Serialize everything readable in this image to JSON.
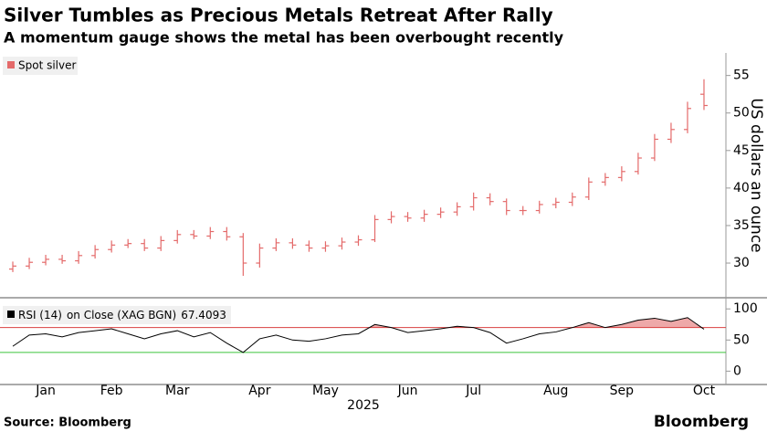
{
  "chart_data": [
    {
      "type": "ohlc",
      "title": "Silver Tumbles as Precious Metals Retreat After Rally",
      "subtitle": "A momentum gauge shows the metal has been overbought recently",
      "y_label": "US dollars an ounce",
      "series": [
        {
          "name": "Spot silver",
          "color": "#e46a6a",
          "open": [
            29.2,
            29.6,
            30.1,
            30.5,
            30.3,
            31.0,
            31.8,
            32.4,
            32.6,
            32.0,
            33.0,
            33.8,
            33.6,
            34.2,
            33.5,
            30.0,
            32.0,
            32.7,
            32.4,
            32.0,
            32.3,
            32.8,
            33.1,
            35.8,
            36.2,
            36.0,
            36.5,
            36.8,
            37.5,
            38.7,
            38.2,
            37.0,
            37.0,
            37.8,
            38.1,
            38.8,
            40.8,
            41.4,
            42.2,
            44.0,
            46.5,
            47.8,
            52.5
          ],
          "high": [
            30.2,
            30.7,
            31.1,
            31.1,
            31.6,
            32.4,
            33.0,
            33.2,
            33.2,
            33.6,
            34.4,
            34.4,
            34.8,
            34.8,
            34.0,
            32.6,
            33.3,
            33.3,
            33.0,
            32.9,
            33.4,
            33.7,
            36.4,
            36.9,
            36.8,
            37.1,
            37.4,
            38.1,
            39.4,
            39.3,
            38.6,
            37.6,
            38.3,
            38.7,
            39.4,
            41.4,
            42.0,
            42.9,
            44.7,
            47.2,
            48.7,
            51.5,
            54.5
          ],
          "low": [
            28.8,
            29.2,
            29.7,
            29.9,
            29.9,
            30.6,
            31.4,
            32.0,
            31.6,
            31.6,
            32.6,
            33.2,
            33.2,
            33.0,
            28.3,
            29.4,
            31.6,
            31.9,
            31.5,
            31.5,
            31.8,
            32.3,
            32.8,
            35.3,
            35.5,
            35.5,
            36.0,
            36.3,
            37.0,
            37.7,
            36.4,
            36.4,
            36.6,
            37.3,
            37.6,
            38.4,
            40.3,
            40.9,
            41.8,
            43.6,
            46.0,
            47.3,
            50.4
          ],
          "close": [
            29.6,
            30.1,
            30.5,
            30.3,
            31.0,
            31.8,
            32.4,
            32.6,
            32.0,
            33.0,
            33.8,
            33.6,
            34.2,
            33.5,
            30.0,
            32.0,
            32.7,
            32.4,
            32.0,
            32.3,
            32.8,
            33.1,
            35.8,
            36.2,
            36.0,
            36.5,
            36.8,
            37.5,
            38.7,
            38.2,
            37.0,
            37.0,
            37.8,
            38.1,
            38.8,
            40.8,
            41.4,
            42.2,
            44.0,
            46.5,
            47.8,
            50.6,
            51.0
          ]
        }
      ],
      "ylim": [
        25.5,
        58
      ],
      "yticks": [
        30,
        35,
        40,
        45,
        50,
        55
      ]
    },
    {
      "type": "line",
      "categories": [
        null,
        null,
        "Jan",
        null,
        null,
        null,
        "Feb",
        null,
        null,
        null,
        "Mar",
        null,
        null,
        null,
        null,
        "Apr",
        null,
        null,
        null,
        "May",
        null,
        null,
        null,
        null,
        "Jun",
        null,
        null,
        null,
        "Jul",
        null,
        null,
        null,
        null,
        "Aug",
        null,
        null,
        null,
        "Sep",
        null,
        null,
        null,
        null,
        "Oct"
      ],
      "x_label": "2025",
      "series": [
        {
          "name": "RSI (14)",
          "study": "on Close (XAG BGN)",
          "color": "#000000",
          "values": [
            40,
            58,
            60,
            55,
            62,
            65,
            68,
            60,
            52,
            60,
            65,
            55,
            62,
            45,
            30,
            52,
            58,
            50,
            48,
            52,
            58,
            60,
            75,
            70,
            62,
            65,
            68,
            72,
            70,
            62,
            45,
            52,
            60,
            63,
            70,
            78,
            70,
            75,
            82,
            85,
            80,
            86,
            67.4093
          ]
        }
      ],
      "overbought": 70,
      "oversold": 30,
      "overbought_color": "#d94040",
      "oversold_color": "#3cc43c",
      "ylim": [
        -20,
        115
      ],
      "yticks": [
        0,
        50,
        100
      ]
    }
  ],
  "footer": {
    "source": "Source: Bloomberg",
    "logo": "Bloomberg"
  }
}
